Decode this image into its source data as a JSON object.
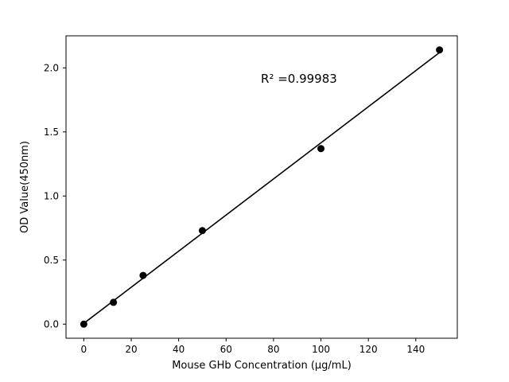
{
  "chart_data": {
    "type": "scatter",
    "title": "",
    "xlabel": "Mouse GHb Concentration (μg/mL)",
    "ylabel": "OD Value(450nm)",
    "x": [
      0,
      12.5,
      25,
      50,
      100,
      150
    ],
    "y": [
      0.0,
      0.17,
      0.38,
      0.73,
      1.37,
      2.14
    ],
    "fit_line": {
      "slope": 0.01409,
      "intercept": 0.006,
      "x_start": 0,
      "x_end": 150
    },
    "annotation": "R² =0.99983",
    "r_squared": 0.99983,
    "xlim": [
      -7.5,
      157.5
    ],
    "ylim": [
      -0.11,
      2.25
    ],
    "xticks": [
      0,
      20,
      40,
      60,
      80,
      100,
      120,
      140
    ],
    "yticks": [
      0,
      0.5,
      1,
      1.5,
      2
    ],
    "grid": false,
    "legend": "none",
    "marker_color": "#000000",
    "line_color": "#000000",
    "background_color": "#ffffff"
  }
}
